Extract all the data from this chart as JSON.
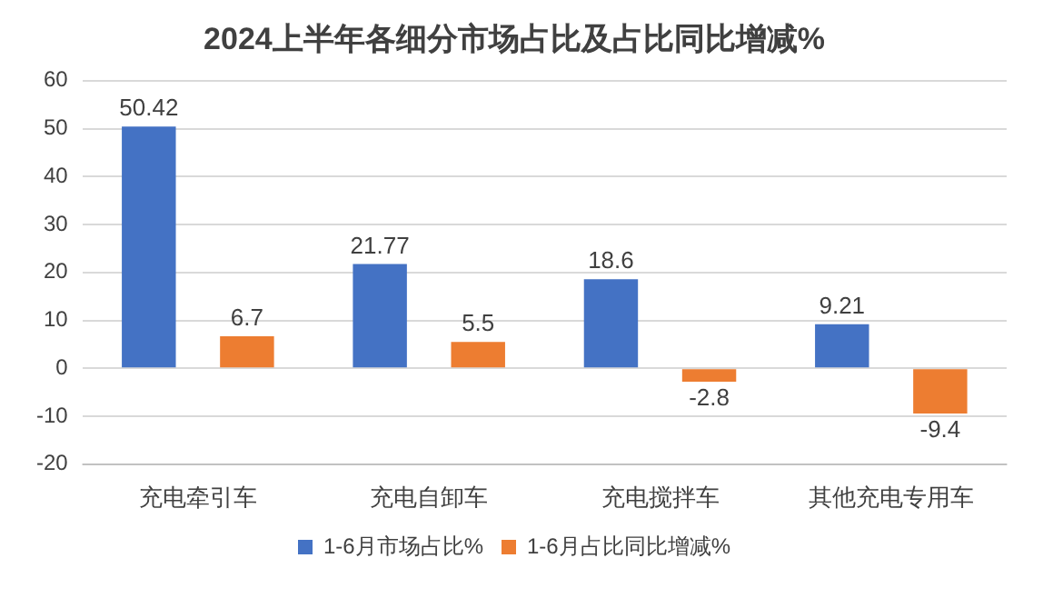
{
  "chart_data": {
    "type": "bar",
    "title": "2024上半年各细分市场占比及占比同比增减%",
    "categories": [
      "充电牵引车",
      "充电自卸车",
      "充电搅拌车",
      "其他充电专用车"
    ],
    "series": [
      {
        "name": "1-6月市场占比%",
        "color": "#4472c4",
        "values": [
          50.42,
          21.77,
          18.6,
          9.21
        ]
      },
      {
        "name": "1-6月占比同比增减%",
        "color": "#ed7d31",
        "values": [
          6.7,
          5.5,
          -2.8,
          -9.4
        ]
      }
    ],
    "ylim": [
      -20,
      60
    ],
    "yticks": [
      -20,
      -10,
      0,
      10,
      20,
      30,
      40,
      50,
      60
    ],
    "grid": "y",
    "legend": "bottom",
    "data_labels": true
  }
}
